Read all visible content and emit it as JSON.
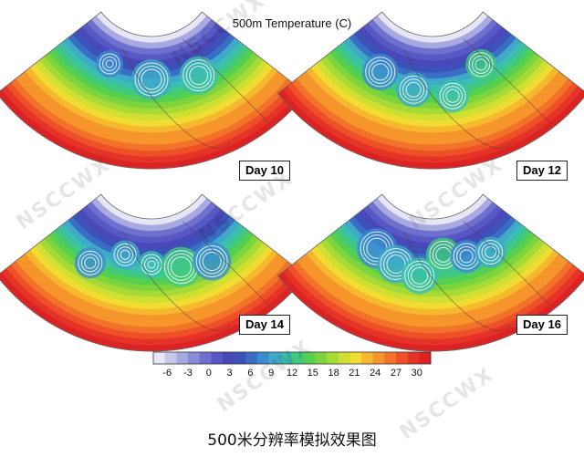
{
  "title": "500m Temperature (C)",
  "caption": "500米分辨率模拟效果图",
  "watermark": "NSCCWX",
  "chart_data": {
    "type": "heatmap",
    "title": "500m Temperature (C)",
    "panels": [
      {
        "label": "Day 10"
      },
      {
        "label": "Day 12"
      },
      {
        "label": "Day 14"
      },
      {
        "label": "Day 16"
      }
    ],
    "colorbar": {
      "ticks": [
        "-6",
        "-3",
        "0",
        "3",
        "6",
        "9",
        "12",
        "15",
        "18",
        "21",
        "24",
        "27",
        "30"
      ],
      "range": [
        -8,
        32
      ],
      "colors": [
        "#e6e6f5",
        "#c8c8ec",
        "#a9a9e2",
        "#8a8ad8",
        "#6f6fce",
        "#5858c4",
        "#4848b8",
        "#3c52b8",
        "#3a6ec4",
        "#3c8bcf",
        "#3ea9c8",
        "#3cbfae",
        "#41c97f",
        "#55cf4f",
        "#7dd43c",
        "#a6da36",
        "#cfe033",
        "#f0dc32",
        "#f6b92e",
        "#f5952b",
        "#f27229",
        "#ee5128",
        "#e63327",
        "#dc2323"
      ]
    }
  }
}
